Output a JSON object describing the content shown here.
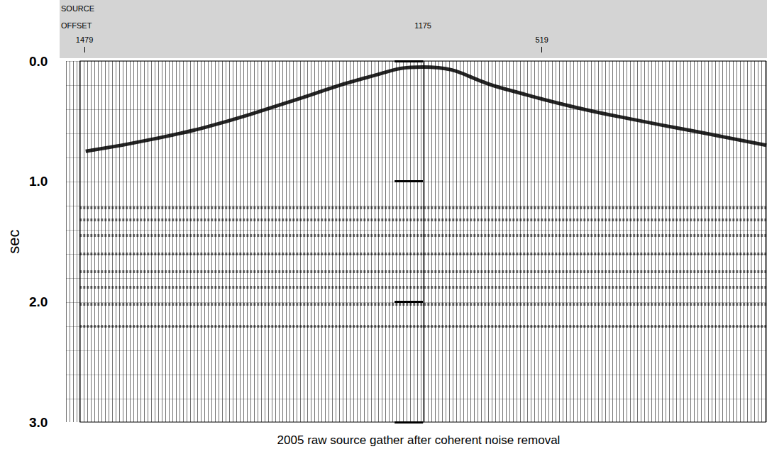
{
  "chart_data": {
    "type": "seismic_gather",
    "caption": "2005 raw source gather after coherent noise removal",
    "header": {
      "source_label": "SOURCE",
      "offset_label": "OFFSET"
    },
    "y_label": "sec",
    "xlim": [
      -1500,
      1500
    ],
    "source_ticks": [
      {
        "value": 0,
        "label": "1175"
      }
    ],
    "offset_ticks": [
      {
        "value": -1479,
        "label": "1479"
      },
      {
        "value": 519,
        "label": "519"
      }
    ],
    "ylim": [
      0,
      3
    ],
    "yticks": [
      {
        "value": 0,
        "label": "0.0"
      },
      {
        "value": 1,
        "label": "1.0"
      },
      {
        "value": 2,
        "label": "2.0"
      },
      {
        "value": 3,
        "label": "3.0"
      }
    ],
    "first_arrivals": {
      "x": [
        -1474,
        -1157,
        -855,
        -553,
        -251,
        0,
        353,
        655,
        957,
        1259,
        1500
      ],
      "values": [
        0.75,
        0.64,
        0.5,
        0.32,
        0.14,
        0.05,
        0.23,
        0.38,
        0.5,
        0.61,
        0.7
      ]
    },
    "reflections": [
      1.22,
      1.32,
      1.45,
      1.6,
      1.75,
      1.88,
      2.02,
      2.2
    ],
    "color": "#000000",
    "grid": true
  }
}
